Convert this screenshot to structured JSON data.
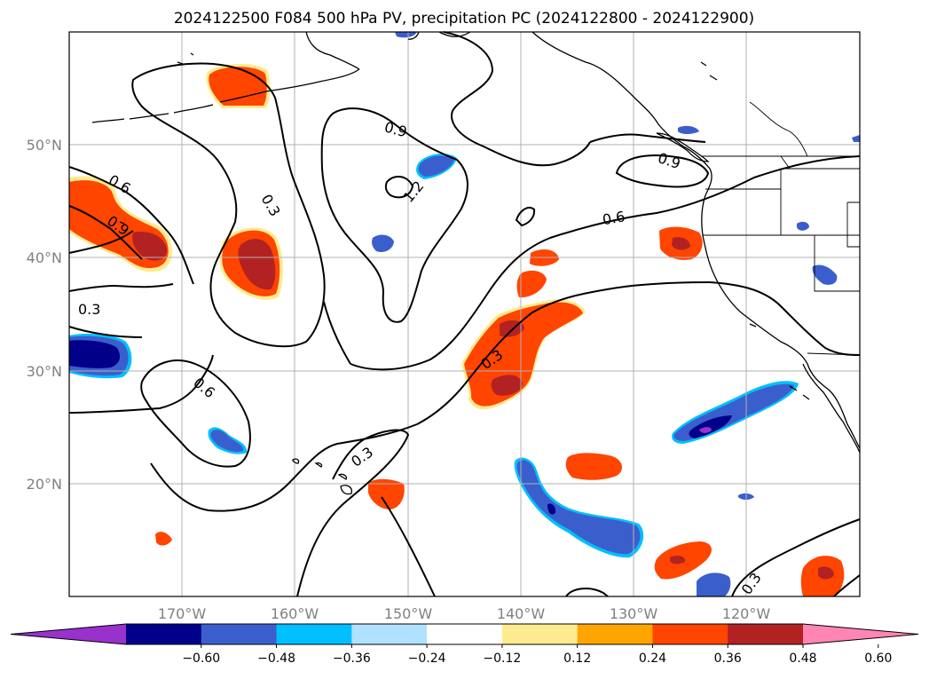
{
  "title": "2024122500 F084 500 hPa PV, precipitation PC (2024122800 - 2024122900)",
  "lat_labels": [
    "50°N",
    "40°N",
    "30°N",
    "20°N"
  ],
  "lon_labels": [
    "170°W",
    "160°W",
    "150°W",
    "140°W",
    "130°W",
    "120°W"
  ],
  "colorbar": {
    "ticks": [
      "−0.60",
      "−0.48",
      "−0.36",
      "−0.24",
      "−0.12",
      "0.12",
      "0.24",
      "0.36",
      "0.48",
      "0.60"
    ],
    "colors": [
      "#9932cc",
      "#00008b",
      "#3a5fcd",
      "#00bfff",
      "#b0e2ff",
      "#ffffff",
      "#ffeb8f",
      "#ffa500",
      "#ff4500",
      "#b22222",
      "#ff85b4"
    ]
  },
  "contour_labels": [
    "0.6",
    "0.9",
    "0.3",
    "0.9",
    "1.2",
    "0.9",
    "0.6",
    "0.3",
    "0.6",
    "0.3",
    "0.3"
  ],
  "colors": {
    "neg_dark": "#00008b",
    "neg_mid": "#3a5fcd",
    "neg_light": "#00bfff",
    "pos_orange": "#ff4500",
    "pos_red": "#b22222",
    "pos_yellow": "#ffeb8f",
    "grid": "#b0b0b0"
  }
}
